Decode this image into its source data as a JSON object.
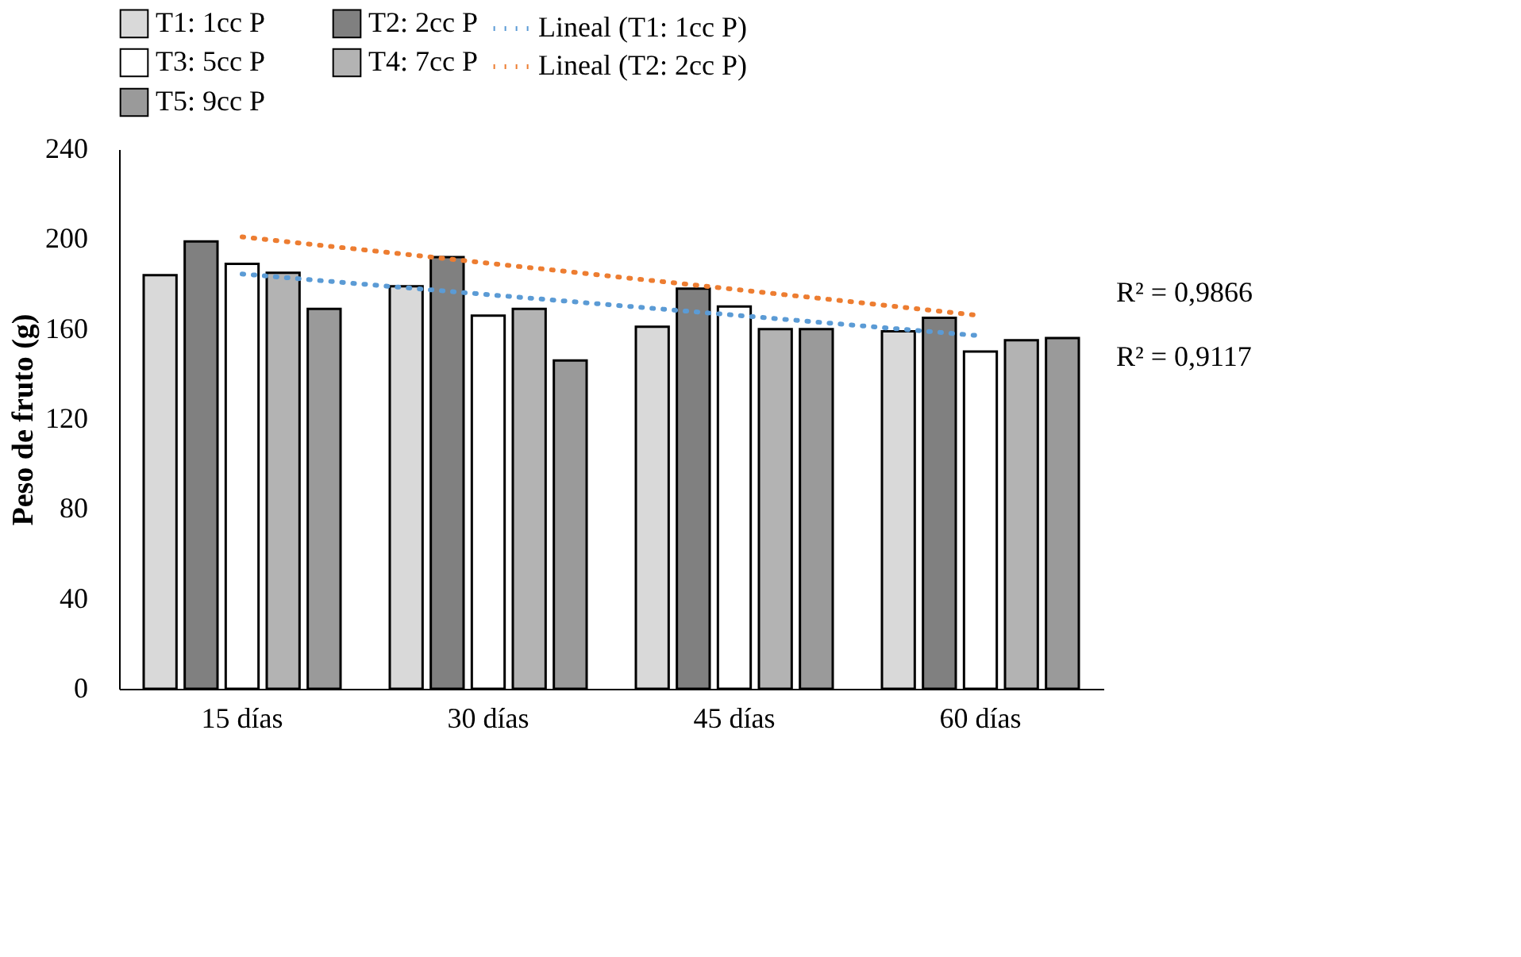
{
  "chart_data": {
    "type": "bar",
    "ylabel": "Peso de fruto (g)",
    "categories": [
      "15 días",
      "30 días",
      "45 días",
      "60 días"
    ],
    "series": [
      {
        "name": "T1: 1cc P",
        "color": "#d9d9d9",
        "values": [
          184,
          179,
          161,
          159
        ]
      },
      {
        "name": "T2: 2cc P",
        "color": "#808080",
        "values": [
          199,
          192,
          178,
          165
        ]
      },
      {
        "name": "T3: 5cc P",
        "color": "#ffffff",
        "values": [
          189,
          166,
          170,
          150
        ]
      },
      {
        "name": "T4: 7cc P",
        "color": "#b3b3b3",
        "values": [
          185,
          169,
          160,
          155
        ]
      },
      {
        "name": "T5: 9cc P",
        "color": "#9a9a9a",
        "values": [
          169,
          146,
          160,
          156
        ]
      },
      {
        "name": "Lineal (T1: 1cc P)",
        "type": "line",
        "line_style": "dotted",
        "color": "#5b9bd5",
        "values": [
          184.5,
          175.3,
          166.2,
          157
        ]
      },
      {
        "name": "Lineal (T2: 2cc P)",
        "type": "line",
        "line_style": "dotted",
        "color": "#ed7d31",
        "values": [
          201,
          189.3,
          177.7,
          166
        ]
      }
    ],
    "annotations": [
      "R² = 0,9866",
      "R² = 0,9117"
    ],
    "ylim": [
      0,
      240
    ],
    "yticks": [
      0,
      40,
      80,
      120,
      160,
      200,
      240
    ],
    "grid": false,
    "legend": "top"
  }
}
